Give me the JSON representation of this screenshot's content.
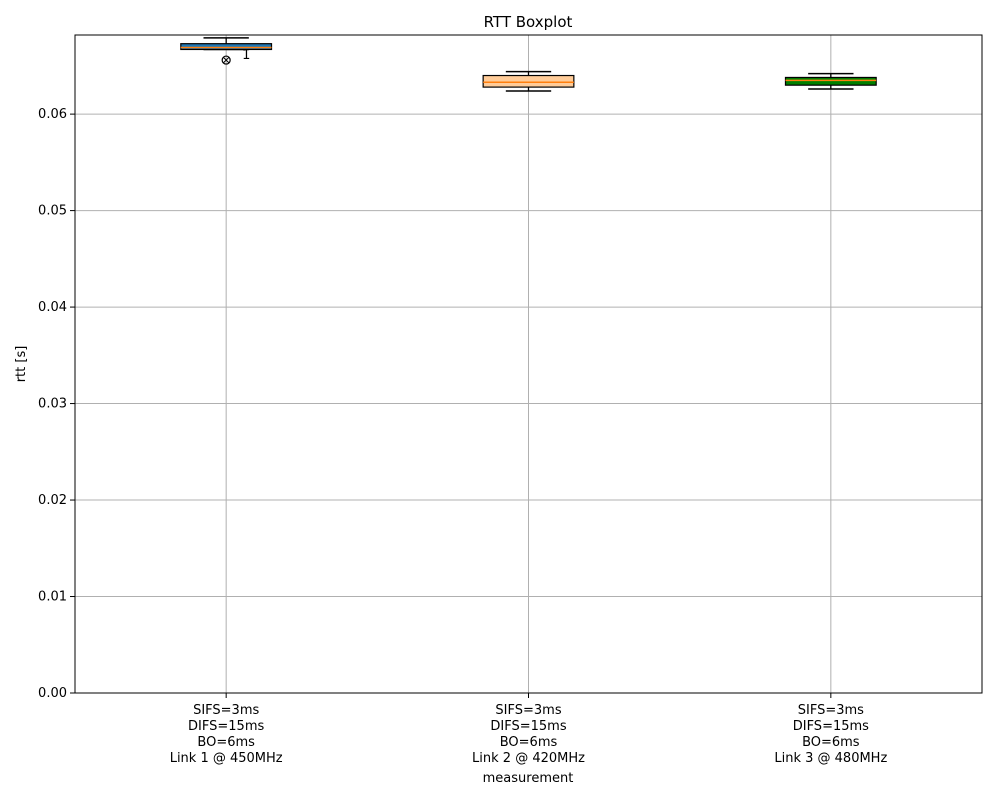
{
  "chart_data": {
    "type": "box",
    "title": "RTT Boxplot",
    "xlabel": "measurement",
    "ylabel": "rtt [s]",
    "ylim": [
      0.0,
      0.0682
    ],
    "yticks": [
      "0.00",
      "0.01",
      "0.02",
      "0.03",
      "0.04",
      "0.05",
      "0.06"
    ],
    "yticks_values": [
      0.0,
      0.01,
      0.02,
      0.03,
      0.04,
      0.05,
      0.06
    ],
    "grid": true,
    "categories": [
      [
        "SIFS=3ms",
        "DIFS=15ms",
        "BO=6ms",
        "Link 1 @ 450MHz"
      ],
      [
        "SIFS=3ms",
        "DIFS=15ms",
        "BO=6ms",
        "Link 2 @ 420MHz"
      ],
      [
        "SIFS=3ms",
        "DIFS=15ms",
        "BO=6ms",
        "Link 3 @ 480MHz"
      ]
    ],
    "boxes": [
      {
        "whisker_low": 0.0667,
        "q1": 0.0667,
        "median": 0.0669,
        "q3": 0.0673,
        "whisker_high": 0.0679,
        "fill": "#1f77b4",
        "outliers": [
          0.0656
        ],
        "outlier_labels": [
          "1"
        ]
      },
      {
        "whisker_low": 0.0624,
        "q1": 0.0628,
        "median": 0.0633,
        "q3": 0.064,
        "whisker_high": 0.0644,
        "fill": "#ffcc99",
        "outliers": [],
        "outlier_labels": []
      },
      {
        "whisker_low": 0.0626,
        "q1": 0.063,
        "median": 0.0635,
        "q3": 0.0638,
        "whisker_high": 0.0642,
        "fill": "#008000",
        "outliers": [],
        "outlier_labels": []
      }
    ],
    "median_color": "#ff7f0e",
    "grid_color": "#b0b0b0"
  }
}
